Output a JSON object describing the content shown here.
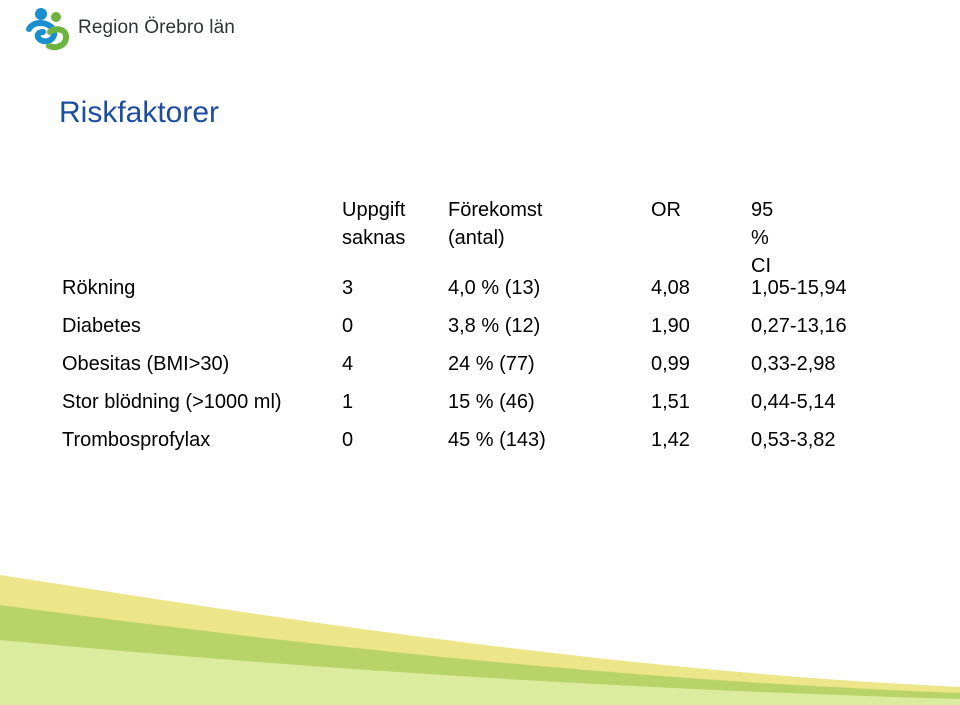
{
  "logo": {
    "text": "Region Örebro län"
  },
  "title": "Riskfaktorer",
  "table": {
    "headers": [
      {
        "lines": [
          ""
        ]
      },
      {
        "lines": [
          "Uppgift",
          "saknas"
        ]
      },
      {
        "lines": [
          "Förekomst",
          "(antal)"
        ]
      },
      {
        "lines": [
          "OR"
        ]
      },
      {
        "lines": [
          "95 % CI"
        ]
      }
    ],
    "rows": [
      [
        "Rökning",
        "3",
        "4,0 % (13)",
        "4,08",
        "1,05-15,94"
      ],
      [
        "Diabetes",
        "0",
        "3,8 % (12)",
        "1,90",
        "0,27-13,16"
      ],
      [
        "Obesitas (BMI>30)",
        "4",
        "24 % (77)",
        "0,99",
        "0,33-2,98"
      ],
      [
        "Stor blödning (>1000 ml)",
        "1",
        "15 % (46)",
        "1,51",
        "0,44-5,14"
      ],
      [
        "Trombosprofylax",
        "0",
        "45 % (143)",
        "1,42",
        "0,53-3,82"
      ]
    ]
  },
  "colors": {
    "title": "#1c4da0",
    "logo_blue": "#1a8fd0",
    "logo_green": "#6cb33f",
    "wave_yellow": "#e8e07a",
    "wave_green": "#a9cd5a",
    "wave_light": "#d7ea9c"
  }
}
